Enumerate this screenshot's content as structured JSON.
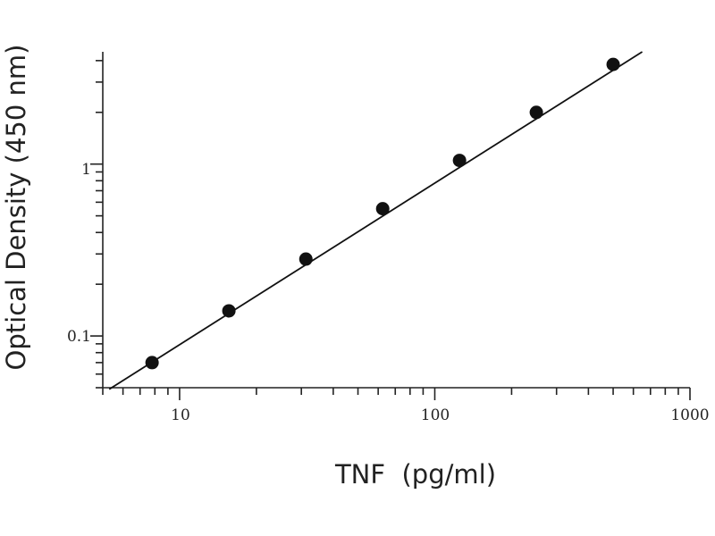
{
  "chart_data": {
    "type": "scatter",
    "title": "",
    "xlabel": "TNF  (pg/ml)",
    "ylabel": "Optical Density (450 nm)",
    "x_scale": "log",
    "y_scale": "log",
    "xlim": [
      5,
      1000
    ],
    "ylim": [
      0.05,
      4.5
    ],
    "x_tick_labels": [
      "10",
      "100",
      "1000"
    ],
    "y_tick_labels": [
      "0.1",
      "1"
    ],
    "grid": false,
    "series": [
      {
        "x": [
          7.8,
          15.6,
          31.25,
          62.5,
          125,
          250,
          500
        ],
        "y": [
          0.07,
          0.14,
          0.28,
          0.55,
          1.05,
          2.0,
          3.8
        ]
      }
    ],
    "fit_line": {
      "x": [
        5.3,
        650
      ],
      "y": [
        0.049,
        4.5
      ]
    }
  }
}
